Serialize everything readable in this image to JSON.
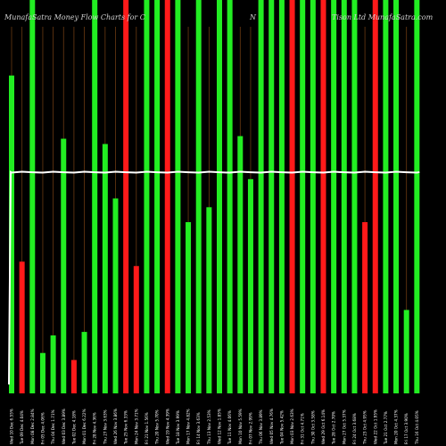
{
  "chart_data": {
    "type": "bar",
    "title_left": "MunafaSatra  Money Flow  Charts for C",
    "title_mid": "N",
    "title_right": "Tison  Ltd  MunafaSatra.com",
    "categories": [
      "Wed 10 Dec 6.55%",
      "Tue 09 Dec 4.04%",
      "Mon 08 Dec 2.84%",
      "Fri 05 Dec 4.06%",
      "Thu 04 Dec 1.71%",
      "Wed 03 Dec 3.89%",
      "Tue 02 Dec 4.18%",
      "Mon 01 Dec 6.22%",
      "Fri 28 Nov 4.36%",
      "Thu 27 Nov 3.63%",
      "Wed 26 Nov 3.86%",
      "Tue 25 Nov 6.33%",
      "Mon 24 Nov 3.71%",
      "Fri 21 Nov 1.56%",
      "Thu 20 Nov 5.70%",
      "Wed 19 Nov 4.39%",
      "Tue 18 Nov 3.99%",
      "Mon 17 Nov 4.82%",
      "Fri 14 Nov 3.63%",
      "Thu 13 Nov 2.53%",
      "Wed 12 Nov 1.85%",
      "Tue 11 Nov 4.06%",
      "Mon 10 Nov 5.59%",
      "Fri 07 Nov 2.99%",
      "Thu 06 Nov 3.89%",
      "Wed 05 Nov 4.76%",
      "Tue 04 Nov 5.42%",
      "Mon 03 Nov 2.63%",
      "Fri 31 Oct 4.71%",
      "Thu 30 Oct 3.58%",
      "Wed 29 Oct 6.14%",
      "Tue 28 Oct 2.70%",
      "Mon 27 Oct 5.37%",
      "Fri 24 Oct 3.68%",
      "Thu 23 Oct 4.95%",
      "Wed 22 Oct 1.95%",
      "Tue 21 Oct 2.77%",
      "Mon 20 Oct 4.37%",
      "Fri 17 Oct 3.90%",
      "Thu 16 Oct 4.05%"
    ],
    "flow": [
      "up",
      "down",
      "up",
      "up",
      "up",
      "up",
      "down",
      "up",
      "up",
      "up",
      "up",
      "down",
      "down",
      "up",
      "up",
      "down",
      "up",
      "up",
      "up",
      "up",
      "up",
      "up",
      "up",
      "up",
      "up",
      "up",
      "up",
      "down",
      "up",
      "up",
      "down",
      "up",
      "up",
      "up",
      "down",
      "down",
      "up",
      "up",
      "up",
      "up"
    ],
    "values": [
      362,
      150,
      448,
      46,
      66,
      290,
      38,
      70,
      448,
      284,
      222,
      448,
      145,
      448,
      448,
      448,
      448,
      195,
      448,
      212,
      448,
      448,
      293,
      244,
      448,
      448,
      448,
      448,
      448,
      448,
      448,
      448,
      448,
      448,
      195,
      448,
      448,
      448,
      95,
      448
    ],
    "ylim": [
      0,
      448
    ],
    "line_level": 252,
    "grid": false,
    "colors": {
      "up": "#22ee22",
      "down": "#ff1a1a",
      "line": "#ffffff",
      "guide": "#6b3a12",
      "background": "#000000"
    }
  }
}
